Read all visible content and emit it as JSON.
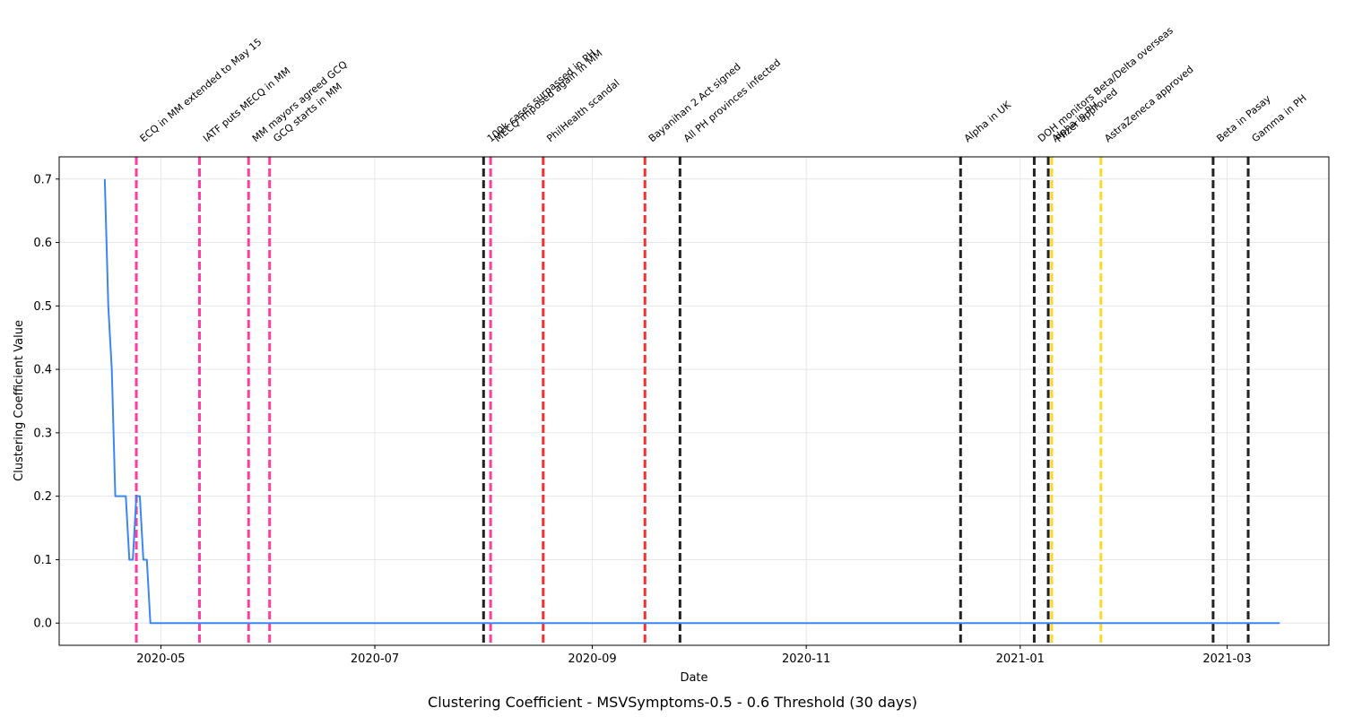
{
  "chart_data": {
    "type": "line",
    "title": "Clustering Coefficient - MSVSymptoms-0.5 - 0.6 Threshold (30 days)",
    "xlabel": "Date",
    "ylabel": "Clustering Coefficient Value",
    "xlim": [
      "2020-04-02",
      "2021-03-30"
    ],
    "ylim": [
      -0.035,
      0.735
    ],
    "grid": true,
    "x_ticks": [
      "2020-05-01",
      "2020-07-01",
      "2020-09-01",
      "2020-11-01",
      "2021-01-01",
      "2021-03-01"
    ],
    "x_tick_labels": [
      "2020-05",
      "2020-07",
      "2020-09",
      "2020-11",
      "2021-01",
      "2021-03"
    ],
    "y_ticks": [
      0.0,
      0.1,
      0.2,
      0.3,
      0.4,
      0.5,
      0.6,
      0.7
    ],
    "y_tick_labels": [
      "0.0",
      "0.1",
      "0.2",
      "0.3",
      "0.4",
      "0.5",
      "0.6",
      "0.7"
    ],
    "series": [
      {
        "color": "#3b86f2",
        "points": [
          [
            "2020-04-15",
            0.7
          ],
          [
            "2020-04-16",
            0.5
          ],
          [
            "2020-04-17",
            0.4
          ],
          [
            "2020-04-18",
            0.2
          ],
          [
            "2020-04-19",
            0.2
          ],
          [
            "2020-04-20",
            0.2
          ],
          [
            "2020-04-21",
            0.2
          ],
          [
            "2020-04-22",
            0.1
          ],
          [
            "2020-04-23",
            0.1
          ],
          [
            "2020-04-24",
            0.2
          ],
          [
            "2020-04-25",
            0.2
          ],
          [
            "2020-04-26",
            0.1
          ],
          [
            "2020-04-27",
            0.1
          ],
          [
            "2020-04-28",
            0.0
          ],
          [
            "2021-03-16",
            0.0
          ]
        ]
      }
    ],
    "events": [
      {
        "date": "2020-04-24",
        "label": "ECQ in MM extended to May 15",
        "color": "#ff3ca0"
      },
      {
        "date": "2020-05-12",
        "label": "IATF puts MECQ in MM",
        "color": "#ff3ca0"
      },
      {
        "date": "2020-05-26",
        "label": "MM mayors agreed GCQ",
        "color": "#ff3ca0"
      },
      {
        "date": "2020-06-01",
        "label": "GCQ starts in MM",
        "color": "#ff3ca0"
      },
      {
        "date": "2020-08-01",
        "label": "100k cases surpassed in PH",
        "color": "#222222"
      },
      {
        "date": "2020-08-03",
        "label": "MECQ imposed again in MM",
        "color": "#ff3ca0"
      },
      {
        "date": "2020-08-18",
        "label": "PhilHealth scandal",
        "color": "#f43030"
      },
      {
        "date": "2020-09-16",
        "label": "Bayanihan 2 Act signed",
        "color": "#f43030"
      },
      {
        "date": "2020-09-26",
        "label": "All PH provinces infected",
        "color": "#222222"
      },
      {
        "date": "2020-12-15",
        "label": "Alpha in UK",
        "color": "#222222"
      },
      {
        "date": "2021-01-05",
        "label": "DOH monitors Beta/Delta overseas",
        "color": "#222222"
      },
      {
        "date": "2021-01-09",
        "label": "Alpha in PH",
        "color": "#222222"
      },
      {
        "date": "2021-01-10",
        "label": "Pfizer approved",
        "color": "#ffd829"
      },
      {
        "date": "2021-01-24",
        "label": "AstraZeneca approved",
        "color": "#ffd829"
      },
      {
        "date": "2021-02-25",
        "label": "Beta in Pasay",
        "color": "#222222"
      },
      {
        "date": "2021-03-07",
        "label": "Gamma in PH",
        "color": "#222222"
      }
    ]
  }
}
